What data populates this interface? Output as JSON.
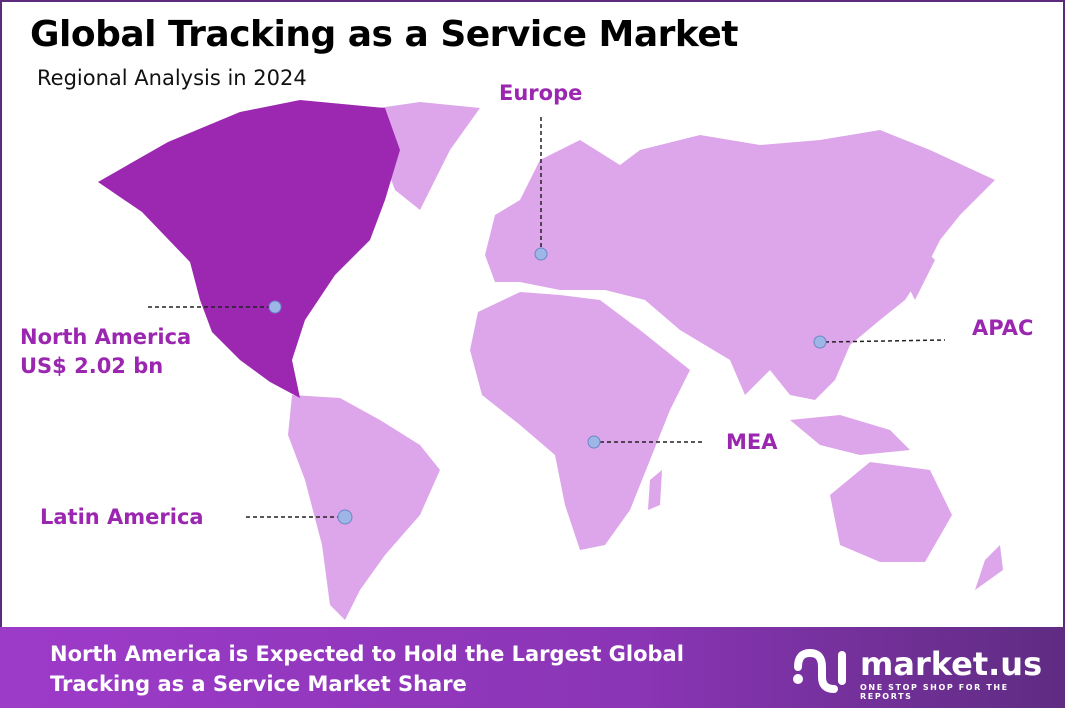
{
  "header": {
    "title": "Global Tracking as a Service Market",
    "subtitle": "Regional Analysis in 2024"
  },
  "colors": {
    "highlight_region": "#9c27b0",
    "other_regions": "#dea6ea",
    "label": "#9b27b0",
    "marker": "#9db6e6"
  },
  "regions": [
    {
      "name": "North America",
      "value": "US$ 2.02 bn",
      "highlighted": true
    },
    {
      "name": "Europe"
    },
    {
      "name": "APAC"
    },
    {
      "name": "MEA"
    },
    {
      "name": "Latin America"
    }
  ],
  "footer": {
    "line1": "North America is Expected to Hold the Largest Global",
    "line2": "Tracking as a Service Market Share",
    "brand": "market.us",
    "tagline": "ONE STOP SHOP FOR THE REPORTS"
  }
}
